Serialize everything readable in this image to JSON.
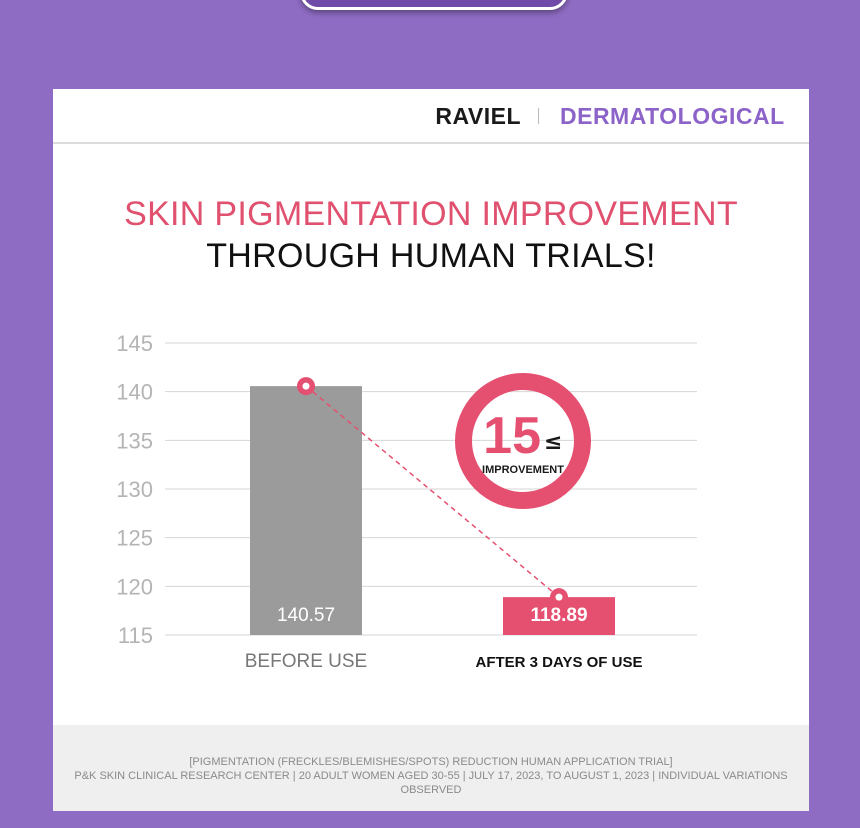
{
  "header": {
    "brand": "RAVIEL",
    "category": "DERMATOLOGICAL"
  },
  "headline": {
    "line1": "SKIN PIGMENTATION IMPROVEMENT",
    "line2": "THROUGH HUMAN TRIALS!"
  },
  "badge": {
    "value": "15",
    "symbol": "≤",
    "label": "IMPROVEMENT"
  },
  "colors": {
    "accent": "#e54f70",
    "bar_before": "#9b9b9b",
    "background": "#8e6cc3",
    "purple_text": "#8c63c8"
  },
  "chart_data": {
    "type": "bar",
    "categories": [
      "BEFORE USE",
      "AFTER 3 DAYS OF USE"
    ],
    "values": [
      140.57,
      118.89
    ],
    "value_labels": [
      "140.57",
      "118.89"
    ],
    "title": "",
    "xlabel": "",
    "ylabel": "",
    "ylim": [
      115,
      145
    ],
    "yticks": [
      145,
      140,
      135,
      130,
      125,
      120,
      115
    ],
    "grid": true
  },
  "footer": {
    "line1": "[PIGMENTATION (FRECKLES/BLEMISHES/SPOTS) REDUCTION HUMAN APPLICATION TRIAL]",
    "line2": "P&K SKIN CLINICAL RESEARCH CENTER | 20 ADULT WOMEN AGED 30-55 | JULY 17, 2023, TO AUGUST 1, 2023 | INDIVIDUAL VARIATIONS OBSERVED"
  }
}
